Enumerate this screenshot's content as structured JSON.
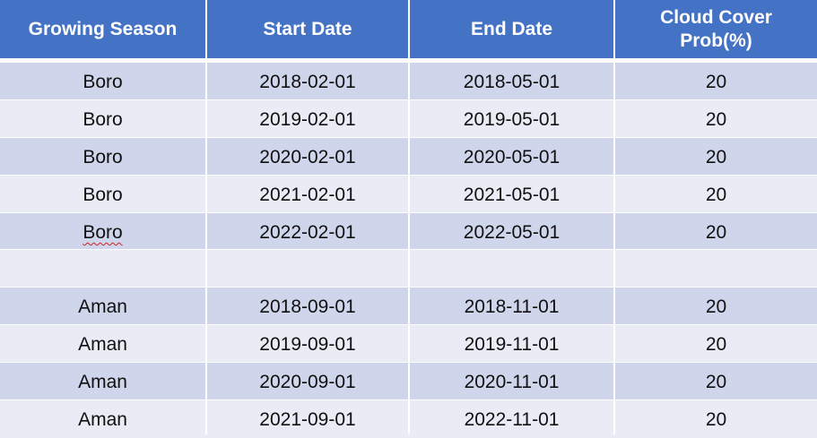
{
  "table": {
    "columns": [
      "Growing Season",
      "Start Date",
      "End Date",
      "Cloud Cover Prob(%)"
    ],
    "header_lines": {
      "col3_line1": "Cloud Cover",
      "col3_line2": "Prob(%)"
    },
    "rows": [
      {
        "season": "Boro",
        "start": "2018-02-01",
        "end": "2018-05-01",
        "cloud": "20"
      },
      {
        "season": "Boro",
        "start": "2019-02-01",
        "end": "2019-05-01",
        "cloud": "20"
      },
      {
        "season": "Boro",
        "start": "2020-02-01",
        "end": "2020-05-01",
        "cloud": "20"
      },
      {
        "season": "Boro",
        "start": "2021-02-01",
        "end": "2021-05-01",
        "cloud": "20"
      },
      {
        "season": "Boro",
        "start": "2022-02-01",
        "end": "2022-05-01",
        "cloud": "20"
      },
      {
        "season": "",
        "start": "",
        "end": "",
        "cloud": ""
      },
      {
        "season": "Aman",
        "start": "2018-09-01",
        "end": "2018-11-01",
        "cloud": "20"
      },
      {
        "season": "Aman",
        "start": "2019-09-01",
        "end": "2019-11-01",
        "cloud": "20"
      },
      {
        "season": "Aman",
        "start": "2020-09-01",
        "end": "2020-11-01",
        "cloud": "20"
      },
      {
        "season": "Aman",
        "start": "2021-09-01",
        "end": "2022-11-01",
        "cloud": "20"
      }
    ]
  },
  "colors": {
    "header_bg": "#4472c4",
    "row_dark": "#cfd5ea",
    "row_light": "#e9ebf5",
    "spellcheck_underline": "#d42020"
  }
}
